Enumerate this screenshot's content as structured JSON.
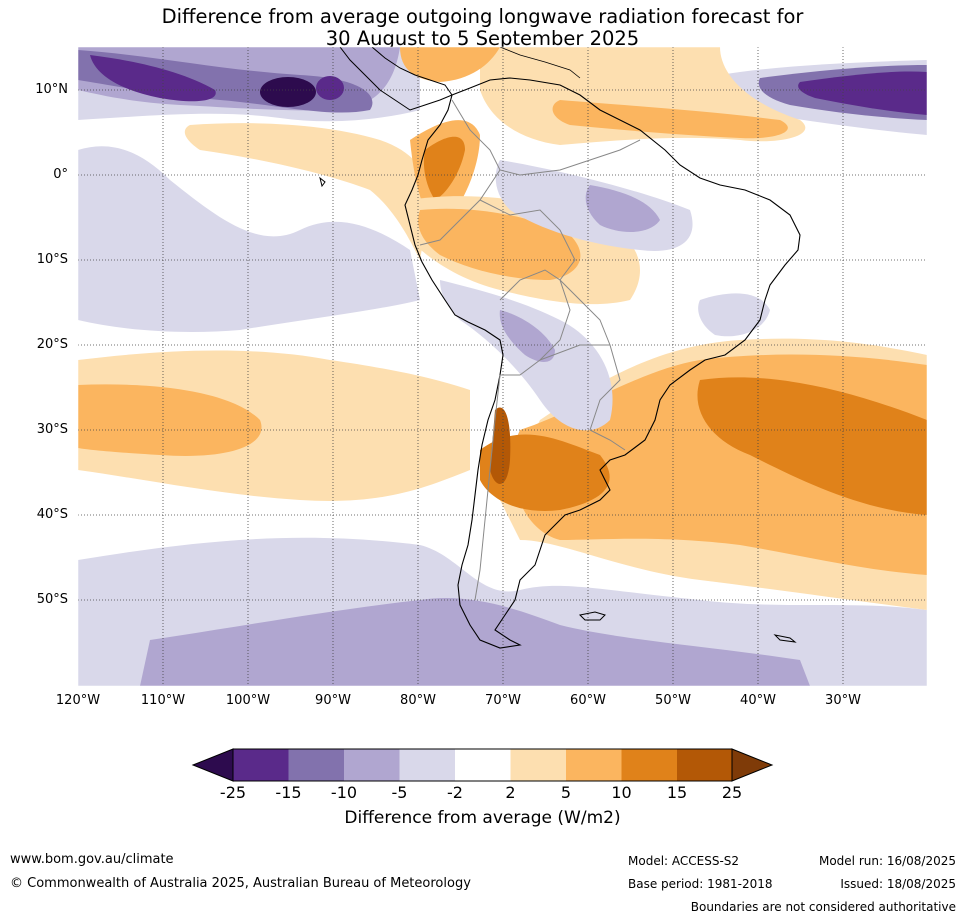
{
  "title": {
    "line1": "Difference from average outgoing longwave radiation forecast for",
    "line2": "30 August to 5 September 2025"
  },
  "map": {
    "lat_labels": [
      "10°N",
      "0°",
      "10°S",
      "20°S",
      "30°S",
      "40°S",
      "50°S"
    ],
    "lon_labels": [
      "120°W",
      "110°W",
      "100°W",
      "90°W",
      "80°W",
      "70°W",
      "60°W",
      "50°W",
      "40°W",
      "30°W"
    ]
  },
  "colorbar": {
    "ticks": [
      "-25",
      "-15",
      "-10",
      "-5",
      "-2",
      "2",
      "5",
      "10",
      "15",
      "25"
    ],
    "label": "Difference from average (W/m2)",
    "colors": [
      "#2d0b4e",
      "#5a2a8a",
      "#8272ad",
      "#b0a6d0",
      "#d9d8ea",
      "#ffffff",
      "#fddfb0",
      "#fbb55f",
      "#e0821a",
      "#b35806",
      "#7f3b08"
    ]
  },
  "footer": {
    "website": "www.bom.gov.au/climate",
    "copyright": "© Commonwealth of Australia 2025, Australian Bureau of Meteorology",
    "model": "Model: ACCESS-S2",
    "model_run": "Model run: 16/08/2025",
    "base_period": "Base period: 1981-2018",
    "issued": "Issued: 18/08/2025",
    "boundaries": "Boundaries are not considered authoritative"
  }
}
